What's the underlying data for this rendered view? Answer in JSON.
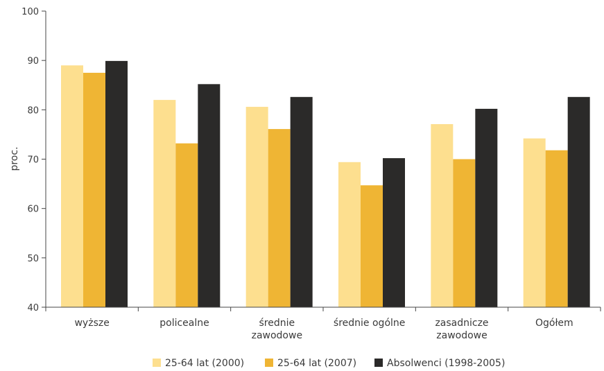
{
  "chart_data": {
    "type": "bar",
    "ylabel": "proc.",
    "xlabel": "",
    "ylim": [
      40,
      100
    ],
    "yticks": [
      "40",
      "50",
      "60",
      "70",
      "80",
      "90",
      "100"
    ],
    "grid": false,
    "legend_position": "bottom",
    "categories": [
      [
        "wyższe"
      ],
      [
        "policealne"
      ],
      [
        "średnie",
        "zawodowe"
      ],
      [
        "średnie ogólne"
      ],
      [
        "zasadnicze",
        "zawodowe"
      ],
      [
        "Ogółem"
      ]
    ],
    "series": [
      {
        "name": "25-64 lat (2000)",
        "color": "#FDDF8F",
        "values": [
          89.0,
          82.0,
          80.6,
          69.4,
          77.1,
          74.2
        ]
      },
      {
        "name": "25-64 lat (2007)",
        "color": "#EFB534",
        "values": [
          87.5,
          73.2,
          76.1,
          64.7,
          70.0,
          71.8
        ]
      },
      {
        "name": "Absolwenci (1998-2005)",
        "color": "#2B2A29",
        "values": [
          89.9,
          85.2,
          82.6,
          70.2,
          80.2,
          82.6
        ]
      }
    ]
  }
}
